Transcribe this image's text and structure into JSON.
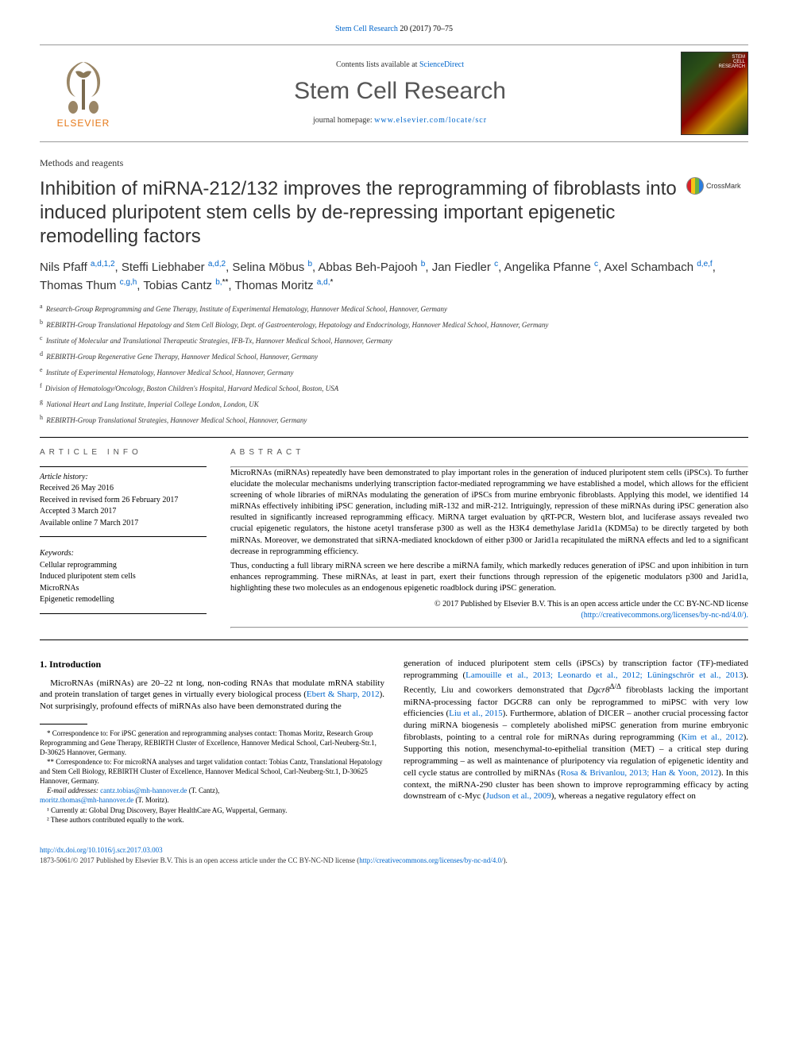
{
  "top_reference": {
    "journal": "Stem Cell Research",
    "citation": " 20 (2017) 70–75",
    "url_text": "Stem Cell Research"
  },
  "masthead": {
    "publisher": "ELSEVIER",
    "contents_prefix": "Contents lists available at ",
    "contents_link": "ScienceDirect",
    "journal_name": "Stem Cell Research",
    "homepage_prefix": "journal homepage: ",
    "homepage_url": "www.elsevier.com/locate/scr",
    "cover_label": "STEM\nCELL\nRESEARCH"
  },
  "article_type": "Methods and reagents",
  "title": "Inhibition of miRNA-212/132 improves the reprogramming of fibroblasts into induced pluripotent stem cells by de-repressing important epigenetic remodelling factors",
  "crossmark_label": "CrossMark",
  "authors_html": "Nils Pfaff <sup>a,d,1,2</sup>, Steffi Liebhaber <sup>a,d,2</sup>, Selina Möbus <sup>b</sup>, Abbas Beh-Pajooh <sup>b</sup>, Jan Fiedler <sup>c</sup>, Angelika Pfanne <sup>c</sup>, Axel Schambach <sup>d,e,f</sup>, Thomas Thum <sup>c,g,h</sup>, Tobias Cantz <sup>b,</sup><sup class='ast'>**</sup>, Thomas Moritz <sup>a,d,</sup><sup class='ast'>*</sup>",
  "affiliations": [
    {
      "key": "a",
      "text": "Research-Group Reprogramming and Gene Therapy, Institute of Experimental Hematology, Hannover Medical School, Hannover, Germany"
    },
    {
      "key": "b",
      "text": "REBIRTH-Group Translational Hepatology and Stem Cell Biology, Dept. of Gastroenterology, Hepatology and Endocrinology, Hannover Medical School, Hannover, Germany"
    },
    {
      "key": "c",
      "text": "Institute of Molecular and Translational Therapeutic Strategies, IFB-Tx, Hannover Medical School, Hannover, Germany"
    },
    {
      "key": "d",
      "text": "REBIRTH-Group Regenerative Gene Therapy, Hannover Medical School, Hannover, Germany"
    },
    {
      "key": "e",
      "text": "Institute of Experimental Hematology, Hannover Medical School, Hannover, Germany"
    },
    {
      "key": "f",
      "text": "Division of Hematology/Oncology, Boston Children's Hospital, Harvard Medical School, Boston, USA"
    },
    {
      "key": "g",
      "text": "National Heart and Lung Institute, Imperial College London, London, UK"
    },
    {
      "key": "h",
      "text": "REBIRTH-Group Translational Strategies, Hannover Medical School, Hannover, Germany"
    }
  ],
  "info": {
    "label": "ARTICLE INFO",
    "history_head": "Article history:",
    "history": [
      "Received 26 May 2016",
      "Received in revised form 26 February 2017",
      "Accepted 3 March 2017",
      "Available online 7 March 2017"
    ],
    "keywords_head": "Keywords:",
    "keywords": [
      "Cellular reprogramming",
      "Induced pluripotent stem cells",
      "MicroRNAs",
      "Epigenetic remodelling"
    ]
  },
  "abstract": {
    "label": "ABSTRACT",
    "paragraphs": [
      "MicroRNAs (miRNAs) repeatedly have been demonstrated to play important roles in the generation of induced pluripotent stem cells (iPSCs). To further elucidate the molecular mechanisms underlying transcription factor-mediated reprogramming we have established a model, which allows for the efficient screening of whole libraries of miRNAs modulating the generation of iPSCs from murine embryonic fibroblasts. Applying this model, we identified 14 miRNAs effectively inhibiting iPSC generation, including miR-132 and miR-212. Intriguingly, repression of these miRNAs during iPSC generation also resulted in significantly increased reprogramming efficacy. MiRNA target evaluation by qRT-PCR, Western blot, and luciferase assays revealed two crucial epigenetic regulators, the histone acetyl transferase p300 as well as the H3K4 demethylase Jarid1a (KDM5a) to be directly targeted by both miRNAs. Moreover, we demonstrated that siRNA-mediated knockdown of either p300 or Jarid1a recapitulated the miRNA effects and led to a significant decrease in reprogramming efficiency.",
      "Thus, conducting a full library miRNA screen we here describe a miRNA family, which markedly reduces generation of iPSC and upon inhibition in turn enhances reprogramming. These miRNAs, at least in part, exert their functions through repression of the epigenetic modulators p300 and Jarid1a, highlighting these two molecules as an endogenous epigenetic roadblock during iPSC generation."
    ],
    "copyright": "© 2017 Published by Elsevier B.V. This is an open access article under the CC BY-NC-ND license",
    "license_url": "(http://creativecommons.org/licenses/by-nc-nd/4.0/)."
  },
  "intro": {
    "heading": "1. Introduction",
    "para1_pre": "MicroRNAs (miRNAs) are 20–22 nt long, non-coding RNAs that modulate mRNA stability and protein translation of target genes in virtually every biological process (",
    "para1_link1": "Ebert & Sharp, 2012",
    "para1_mid": "). Not surprisingly, profound effects of miRNAs also have been demonstrated during the",
    "para2_pre": "generation of induced pluripotent stem cells (iPSCs) by transcription factor (TF)-mediated reprogramming (",
    "para2_link1": "Lamouille et al., 2013; Leonardo et al., 2012; Lüningschrör et al., 2013",
    "para2_mid1": "). Recently, Liu and coworkers demonstrated that ",
    "para2_ital1": "Dgcr8",
    "para2_sup1": "Δ/Δ",
    "para2_mid2": " fibroblasts lacking the important miRNA-processing factor DGCR8 can only be reprogrammed to miPSC with very low efficiencies (",
    "para2_link2": "Liu et al., 2015",
    "para2_mid3": "). Furthermore, ablation of DICER – another crucial processing factor during miRNA biogenesis – completely abolished miPSC generation from murine embryonic fibroblasts, pointing to a central role for miRNAs during reprogramming (",
    "para2_link3": "Kim et al., 2012",
    "para2_mid4": "). Supporting this notion, mesenchymal-to-epithelial transition (MET) – a critical step during reprogramming – as well as maintenance of pluripotency via regulation of epigenetic identity and cell cycle status are controlled by miRNAs (",
    "para2_link4": "Rosa & Brivanlou, 2013; Han & Yoon, 2012",
    "para2_mid5": "). In this context, the miRNA-290 cluster has been shown to improve reprogramming efficacy by acting downstream of c-Myc (",
    "para2_link5": "Judson et al., 2009",
    "para2_mid6": "), whereas a negative regulatory effect on"
  },
  "footnotes": {
    "corr1": "* Correspondence to: For iPSC generation and reprogramming analyses contact: Thomas Moritz, Research Group Reprogramming and Gene Therapy, REBIRTH Cluster of Excellence, Hannover Medical School, Carl-Neuberg-Str.1, D-30625 Hannover, Germany.",
    "corr2": "** Correspondence to: For microRNA analyses and target validation contact: Tobias Cantz, Translational Hepatology and Stem Cell Biology, REBIRTH Cluster of Excellence, Hannover Medical School, Carl-Neuberg-Str.1, D-30625 Hannover, Germany.",
    "email_label": "E-mail addresses: ",
    "email1": "cantz.tobias@mh-hannover.de",
    "email1_who": " (T. Cantz), ",
    "email2": "moritz.thomas@mh-hannover.de",
    "email2_who": " (T. Moritz).",
    "note1": "¹ Currently at: Global Drug Discovery, Bayer HealthCare AG, Wuppertal, Germany.",
    "note2": "² These authors contributed equally to the work."
  },
  "footer": {
    "doi": "http://dx.doi.org/10.1016/j.scr.2017.03.003",
    "rights_pre": "1873-5061/© 2017 Published by Elsevier B.V. This is an open access article under the CC BY-NC-ND license (",
    "rights_url": "http://creativecommons.org/licenses/by-nc-nd/4.0/",
    "rights_post": ")."
  },
  "colors": {
    "link": "#0066cc",
    "elsevier_orange": "#e67817",
    "text": "#000000",
    "heading_grey": "#555555"
  }
}
